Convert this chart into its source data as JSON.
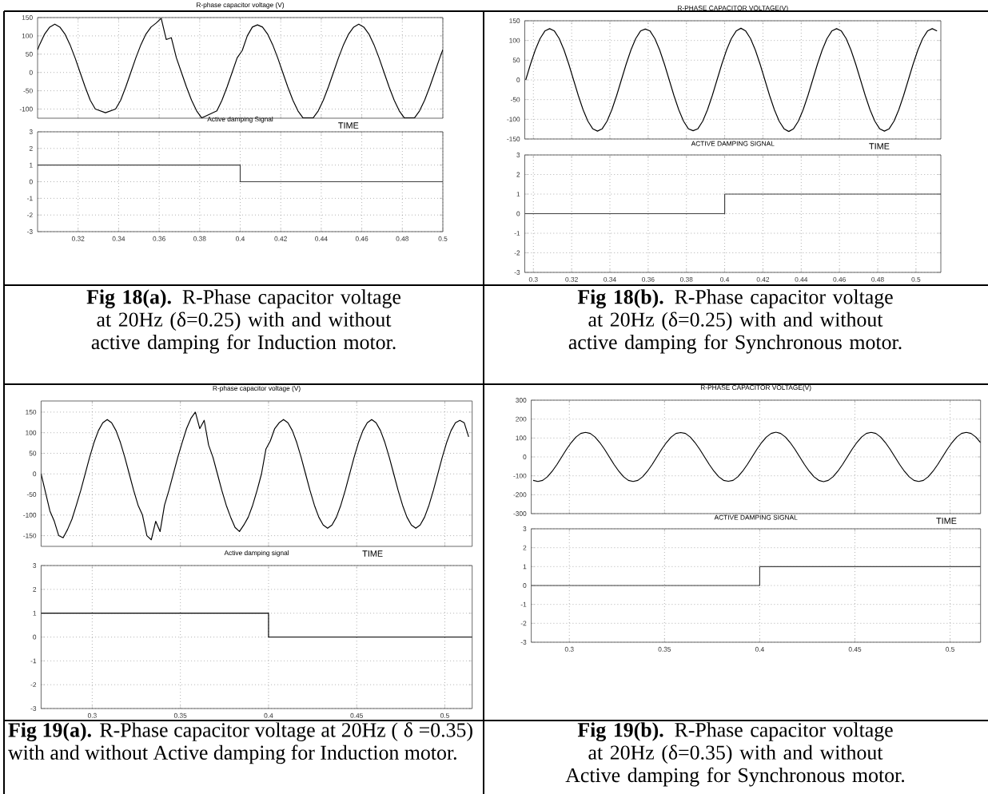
{
  "chart_data": [
    {
      "type": "line",
      "title": "R-phase capacitor voltage (V)",
      "xlabel": "TIME",
      "color": "#000000",
      "tick_labels": "y",
      "grid": true,
      "x": [
        0.3,
        0.301,
        0.3035,
        0.306,
        0.3085,
        0.311,
        0.3135,
        0.316,
        0.3185,
        0.321,
        0.3235,
        0.326,
        0.3285,
        0.331,
        0.3335,
        0.336,
        0.3385,
        0.341,
        0.3435,
        0.346,
        0.3485,
        0.351,
        0.3535,
        0.356,
        0.3585,
        0.361,
        0.3635,
        0.366,
        0.3685,
        0.371,
        0.3735,
        0.376,
        0.3785,
        0.381,
        0.3835,
        0.386,
        0.3885,
        0.391,
        0.3935,
        0.396,
        0.3985,
        0.401,
        0.4035,
        0.406,
        0.4085,
        0.411,
        0.4135,
        0.416,
        0.4185,
        0.421,
        0.4235,
        0.426,
        0.4285,
        0.431,
        0.4335,
        0.436,
        0.4385,
        0.441,
        0.4435,
        0.446,
        0.4485,
        0.451,
        0.4535,
        0.456,
        0.4585,
        0.461,
        0.4635,
        0.466,
        0.4685,
        0.471,
        0.4735,
        0.476,
        0.4785,
        0.481,
        0.4835,
        0.486,
        0.4885,
        0.491,
        0.4935,
        0.496,
        0.4985,
        0.5
      ],
      "values": [
        62,
        76,
        105,
        124,
        132,
        124,
        105,
        76,
        40,
        0,
        -40,
        -76,
        -100,
        null,
        -110,
        null,
        -100,
        -76,
        -40,
        0,
        40,
        76,
        105,
        124,
        135,
        148,
        90,
        95,
        40,
        0,
        -40,
        -76,
        -105,
        -124,
        null,
        null,
        -105,
        -76,
        -40,
        0,
        40,
        60,
        100,
        124,
        130,
        124,
        105,
        76,
        40,
        0,
        -40,
        -76,
        -105,
        -124,
        null,
        -124,
        -105,
        -76,
        -40,
        0,
        40,
        76,
        105,
        124,
        132,
        124,
        105,
        76,
        40,
        0,
        -40,
        -76,
        -105,
        -124,
        null,
        -124,
        -105,
        -76,
        -40,
        0,
        40,
        62
      ],
      "xlim": [
        0.3,
        0.5
      ],
      "ylim": [
        -125,
        150
      ],
      "xticks": [
        0.32,
        0.34,
        0.36,
        0.38,
        0.4,
        0.42,
        0.44,
        0.46,
        0.48,
        0.5
      ],
      "yticks": [
        -100,
        -50,
        0,
        50,
        100,
        150
      ]
    },
    {
      "type": "step",
      "title": "Active damping Signal",
      "color": "#404040",
      "grid": true,
      "x": [
        0.3,
        0.4,
        0.5
      ],
      "values": [
        1,
        0,
        0
      ],
      "xlim": [
        0.3,
        0.5
      ],
      "ylim": [
        -3,
        3
      ],
      "xticks": [
        0.32,
        0.34,
        0.36,
        0.38,
        0.4,
        0.42,
        0.44,
        0.46,
        0.48,
        0.5
      ],
      "yticks": [
        -3,
        -2,
        -1,
        0,
        1,
        2,
        3
      ],
      "annotations": [
        "**Fig 18(a).** R-Phase capacitor voltage at 20Hz (δ=0.25) with and without active damping for Induction motor."
      ]
    },
    {
      "type": "line",
      "title": "R-PHASE CAPACITOR VOLTAGE(V)",
      "xlabel": "TIME",
      "color": "#000000",
      "tick_labels": "y",
      "grid": true,
      "x": [
        0.296,
        0.2985,
        0.301,
        0.3035,
        0.306,
        0.3085,
        0.311,
        0.3135,
        0.316,
        0.3185,
        0.321,
        0.3235,
        0.326,
        0.3285,
        0.331,
        0.3335,
        0.336,
        0.3385,
        0.341,
        0.3435,
        0.346,
        0.3485,
        0.351,
        0.3535,
        0.356,
        0.3585,
        0.361,
        0.3635,
        0.366,
        0.3685,
        0.371,
        0.3735,
        0.376,
        0.3785,
        0.381,
        0.3835,
        0.386,
        0.3885,
        0.391,
        0.3935,
        0.396,
        0.3985,
        0.401,
        0.4035,
        0.406,
        0.4085,
        0.411,
        0.4135,
        0.416,
        0.4185,
        0.421,
        0.4235,
        0.426,
        0.4285,
        0.431,
        0.4335,
        0.436,
        0.4385,
        0.441,
        0.4435,
        0.446,
        0.4485,
        0.451,
        0.4535,
        0.456,
        0.4585,
        0.461,
        0.4635,
        0.466,
        0.4685,
        0.471,
        0.4735,
        0.476,
        0.4785,
        0.481,
        0.4835,
        0.486,
        0.4885,
        0.491,
        0.4935,
        0.496,
        0.4985,
        0.501,
        0.5035,
        0.506,
        0.5085,
        0.511
      ],
      "values": [
        0,
        40,
        76,
        105,
        124,
        130,
        124,
        105,
        76,
        40,
        0,
        -40,
        -76,
        -105,
        -124,
        -130,
        -124,
        -105,
        -76,
        -40,
        0,
        40,
        76,
        105,
        124,
        129,
        124,
        105,
        76,
        40,
        0,
        -40,
        -76,
        -105,
        -124,
        -129,
        -124,
        -105,
        -76,
        -40,
        0,
        40,
        76,
        105,
        124,
        131,
        124,
        105,
        76,
        40,
        0,
        -40,
        -76,
        -105,
        -124,
        -131,
        -124,
        -105,
        -76,
        -40,
        0,
        40,
        76,
        105,
        124,
        130,
        124,
        105,
        76,
        40,
        0,
        -40,
        -76,
        -105,
        -124,
        -130,
        -124,
        -105,
        -76,
        -40,
        0,
        40,
        76,
        105,
        124,
        130,
        124
      ],
      "xlim": [
        0.2955,
        0.513
      ],
      "ylim": [
        -150,
        150
      ],
      "xticks": [
        0.3,
        0.32,
        0.34,
        0.36,
        0.38,
        0.4,
        0.42,
        0.44,
        0.46,
        0.48,
        0.5
      ],
      "yticks": [
        -150,
        -100,
        -50,
        0,
        50,
        100,
        150
      ]
    },
    {
      "type": "step",
      "title": "ACTIVE DAMPING SIGNAL",
      "color": "#404040",
      "grid": true,
      "x": [
        0.2955,
        0.4,
        0.513
      ],
      "values": [
        0,
        1,
        1
      ],
      "xlim": [
        0.2955,
        0.513
      ],
      "ylim": [
        -3,
        3
      ],
      "xticks": [
        0.3,
        0.32,
        0.34,
        0.36,
        0.38,
        0.4,
        0.42,
        0.44,
        0.46,
        0.48,
        0.5
      ],
      "yticks": [
        -3,
        -2,
        -1,
        0,
        1,
        2,
        3
      ],
      "annotations": [
        "**Fig 18(b).** R-Phase capacitor voltage at 20Hz (δ=0.25) with and without active damping for Synchronous motor."
      ]
    },
    {
      "type": "line",
      "title": "R-phase capacitor voltage (V)",
      "xlabel": "TIME",
      "color": "#000000",
      "tick_labels": "y",
      "grid": true,
      "x": [
        0.271,
        0.2735,
        0.276,
        0.2785,
        0.281,
        0.2835,
        0.286,
        0.2885,
        0.291,
        0.2935,
        0.296,
        0.2985,
        0.301,
        0.3035,
        0.306,
        0.3085,
        0.311,
        0.3135,
        0.316,
        0.3185,
        0.321,
        0.3235,
        0.326,
        0.3285,
        0.331,
        0.3335,
        0.336,
        0.3385,
        0.341,
        0.3435,
        0.346,
        0.3485,
        0.351,
        0.3535,
        0.356,
        0.3585,
        0.361,
        0.3635,
        0.366,
        0.3685,
        0.371,
        0.3735,
        0.376,
        0.3785,
        0.381,
        0.3835,
        0.386,
        0.3885,
        0.391,
        0.3935,
        0.396,
        0.3985,
        0.401,
        0.4035,
        0.406,
        0.4085,
        0.411,
        0.4135,
        0.416,
        0.4185,
        0.421,
        0.4235,
        0.426,
        0.4285,
        0.431,
        0.4335,
        0.436,
        0.4385,
        0.441,
        0.4435,
        0.446,
        0.4485,
        0.451,
        0.4535,
        0.456,
        0.4585,
        0.461,
        0.4635,
        0.466,
        0.4685,
        0.471,
        0.4735,
        0.476,
        0.4785,
        0.481,
        0.4835,
        0.486,
        0.4885,
        0.491,
        0.4935,
        0.496,
        0.4985,
        0.501,
        0.5035,
        0.506,
        0.5085,
        0.511,
        0.5135
      ],
      "values": [
        0,
        -45,
        -90,
        -115,
        -150,
        -155,
        -135,
        -110,
        -76,
        -40,
        0,
        40,
        76,
        105,
        124,
        132,
        124,
        105,
        76,
        40,
        0,
        -40,
        -76,
        -100,
        -150,
        -160,
        -115,
        -140,
        -76,
        -40,
        0,
        40,
        76,
        110,
        135,
        150,
        110,
        130,
        70,
        40,
        0,
        -40,
        -76,
        -105,
        -130,
        -140,
        -124,
        -105,
        -76,
        -40,
        0,
        60,
        80,
        110,
        124,
        132,
        124,
        105,
        76,
        40,
        0,
        -40,
        -76,
        -105,
        -124,
        -132,
        -124,
        -105,
        -76,
        -40,
        0,
        40,
        76,
        105,
        124,
        132,
        124,
        105,
        76,
        40,
        0,
        -40,
        -76,
        -105,
        -124,
        -132,
        -124,
        -105,
        -76,
        -40,
        0,
        40,
        76,
        105,
        124,
        130,
        124,
        90
      ],
      "xlim": [
        0.271,
        0.5155
      ],
      "ylim": [
        -176,
        177
      ],
      "xticks": [
        0.3,
        0.35,
        0.4,
        0.45,
        0.5
      ],
      "yticks": [
        -150,
        -100,
        -50,
        0,
        50,
        100,
        150
      ]
    },
    {
      "type": "step",
      "title": "Active damping signal",
      "color": "#000000",
      "grid": true,
      "x": [
        0.271,
        0.4,
        0.5155
      ],
      "values": [
        1,
        0,
        0
      ],
      "xlim": [
        0.271,
        0.5155
      ],
      "ylim": [
        -3,
        3
      ],
      "xticks": [
        0.3,
        0.35,
        0.4,
        0.45,
        0.5
      ],
      "yticks": [
        -3,
        -2,
        -1,
        0,
        1,
        2,
        3
      ],
      "annotations": [
        "**Fig 19(a).** R-Phase capacitor voltage at 20Hz ( δ =0.35) with and without Active damping for Induction motor."
      ]
    },
    {
      "type": "line",
      "title": "R-PHASE CAPACITOR VOLTAGE(V)",
      "xlabel": "TIME",
      "color": "#000000",
      "tick_labels": "y",
      "grid": true,
      "x": [
        0.281,
        0.2835,
        0.286,
        0.2885,
        0.291,
        0.2935,
        0.296,
        0.2985,
        0.301,
        0.3035,
        0.306,
        0.3085,
        0.311,
        0.3135,
        0.316,
        0.3185,
        0.321,
        0.3235,
        0.326,
        0.3285,
        0.331,
        0.3335,
        0.336,
        0.3385,
        0.341,
        0.3435,
        0.346,
        0.3485,
        0.351,
        0.3535,
        0.356,
        0.3585,
        0.361,
        0.3635,
        0.366,
        0.3685,
        0.371,
        0.3735,
        0.376,
        0.3785,
        0.381,
        0.3835,
        0.386,
        0.3885,
        0.391,
        0.3935,
        0.396,
        0.3985,
        0.401,
        0.4035,
        0.406,
        0.4085,
        0.411,
        0.4135,
        0.416,
        0.4185,
        0.421,
        0.4235,
        0.426,
        0.4285,
        0.431,
        0.4335,
        0.436,
        0.4385,
        0.441,
        0.4435,
        0.446,
        0.4485,
        0.451,
        0.4535,
        0.456,
        0.4585,
        0.461,
        0.4635,
        0.466,
        0.4685,
        0.471,
        0.4735,
        0.476,
        0.4785,
        0.481,
        0.4835,
        0.486,
        0.4885,
        0.491,
        0.4935,
        0.496,
        0.4985,
        0.501,
        0.5035,
        0.506,
        0.5085,
        0.511,
        0.5135,
        0.516
      ],
      "values": [
        -124,
        -130,
        -124,
        -105,
        -76,
        -40,
        0,
        40,
        76,
        105,
        124,
        130,
        124,
        105,
        76,
        40,
        0,
        -40,
        -76,
        -105,
        -124,
        -130,
        -124,
        -105,
        -76,
        -40,
        0,
        40,
        76,
        105,
        124,
        129,
        124,
        105,
        76,
        40,
        0,
        -40,
        -76,
        -105,
        -124,
        -129,
        -124,
        -105,
        -76,
        -40,
        0,
        40,
        76,
        105,
        124,
        131,
        124,
        105,
        76,
        40,
        0,
        -40,
        -76,
        -105,
        -124,
        -131,
        -124,
        -105,
        -76,
        -40,
        0,
        40,
        76,
        105,
        124,
        130,
        124,
        105,
        76,
        40,
        0,
        -40,
        -76,
        -105,
        -124,
        -130,
        -124,
        -105,
        -76,
        -40,
        0,
        40,
        76,
        105,
        124,
        130,
        124,
        105,
        76
      ],
      "xlim": [
        0.28,
        0.516
      ],
      "ylim": [
        -300,
        300
      ],
      "xticks": [
        0.3,
        0.35,
        0.4,
        0.45,
        0.5
      ],
      "yticks": [
        -300,
        -200,
        -100,
        0,
        100,
        200,
        300
      ]
    },
    {
      "type": "step",
      "title": "ACTIVE DAMPING SIGNAL",
      "color": "#404040",
      "grid": true,
      "x": [
        0.28,
        0.4,
        0.516
      ],
      "values": [
        0,
        1,
        1
      ],
      "xlim": [
        0.28,
        0.516
      ],
      "ylim": [
        -3,
        3
      ],
      "xticks": [
        0.3,
        0.35,
        0.4,
        0.45,
        0.5
      ],
      "yticks": [
        -3,
        -2,
        -1,
        0,
        1,
        2,
        3
      ],
      "annotations": [
        "**Fig 19(b).** R-Phase capacitor voltage at 20Hz (δ=0.35) with and without Active damping for Synchronous motor."
      ]
    }
  ]
}
